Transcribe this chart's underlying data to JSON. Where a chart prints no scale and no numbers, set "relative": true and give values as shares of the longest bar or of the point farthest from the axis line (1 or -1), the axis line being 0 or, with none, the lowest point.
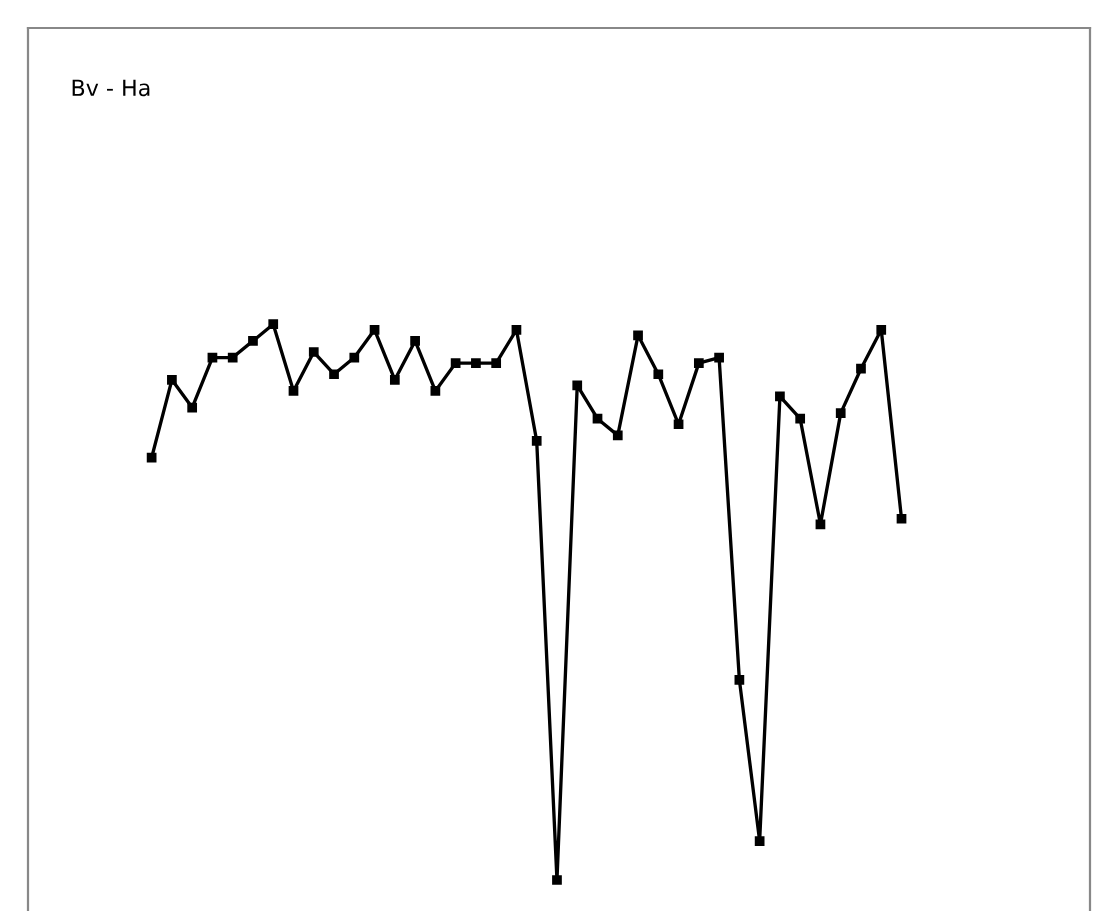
{
  "chart_data": {
    "type": "line",
    "title": "Bv - Ha",
    "relative": true,
    "marker": "square",
    "grid": false,
    "legend": false,
    "categories": [
      null,
      null,
      null,
      null,
      null,
      null,
      null,
      null,
      null,
      null,
      null,
      null,
      null,
      null,
      null,
      null,
      null,
      null,
      null,
      null,
      null,
      null,
      null,
      null,
      null,
      null,
      null,
      null,
      null,
      null,
      null,
      null,
      null,
      null,
      null,
      null,
      null,
      null
    ],
    "series": [
      {
        "color": "#000000",
        "values": [
          0.76,
          0.9,
          0.85,
          0.94,
          0.94,
          0.97,
          1,
          0.88,
          0.95,
          0.91,
          0.94,
          0.99,
          0.9,
          0.97,
          0.88,
          0.93,
          0.93,
          0.93,
          0.99,
          0.79,
          0,
          0.89,
          0.83,
          0.8,
          0.98,
          0.91,
          0.82,
          0.93,
          0.94,
          0.36,
          0.07,
          0.87,
          0.83,
          0.64,
          0.84,
          0.92,
          0.99,
          0.65
        ]
      }
    ]
  }
}
